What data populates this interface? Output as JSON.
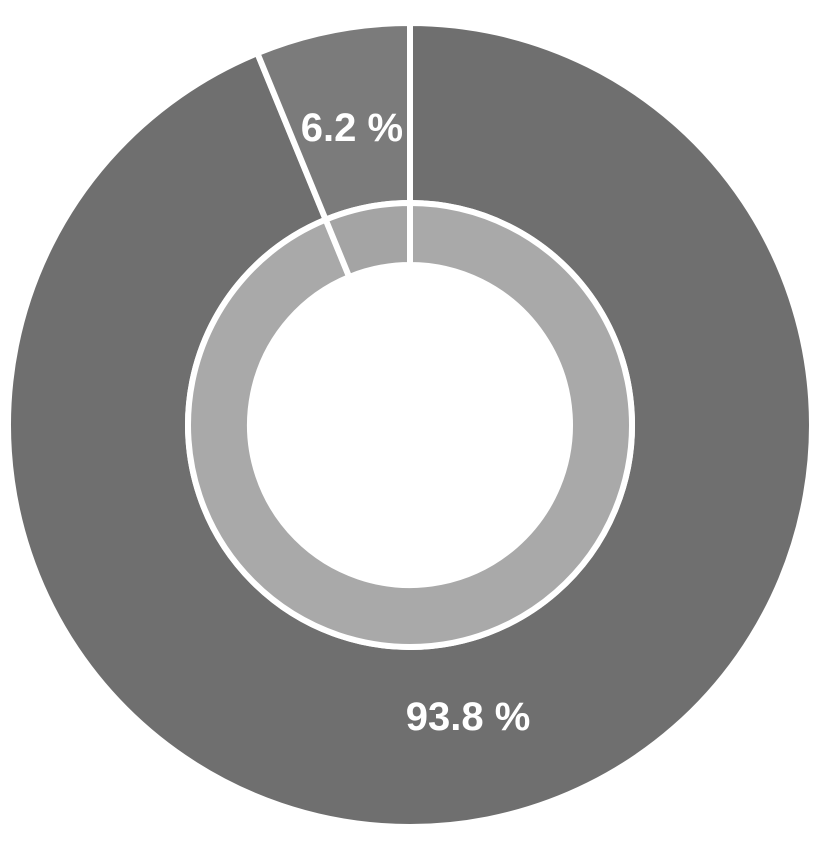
{
  "chart_data": {
    "type": "donut",
    "values": [
      93.8,
      6.2
    ],
    "value_labels": [
      "93.8 %",
      "6.2 %"
    ],
    "colors": [
      "#6f6f6f",
      "#7b7b7b"
    ],
    "inner_colors": [
      "#a9a9a9",
      "#a4a4a4"
    ]
  }
}
